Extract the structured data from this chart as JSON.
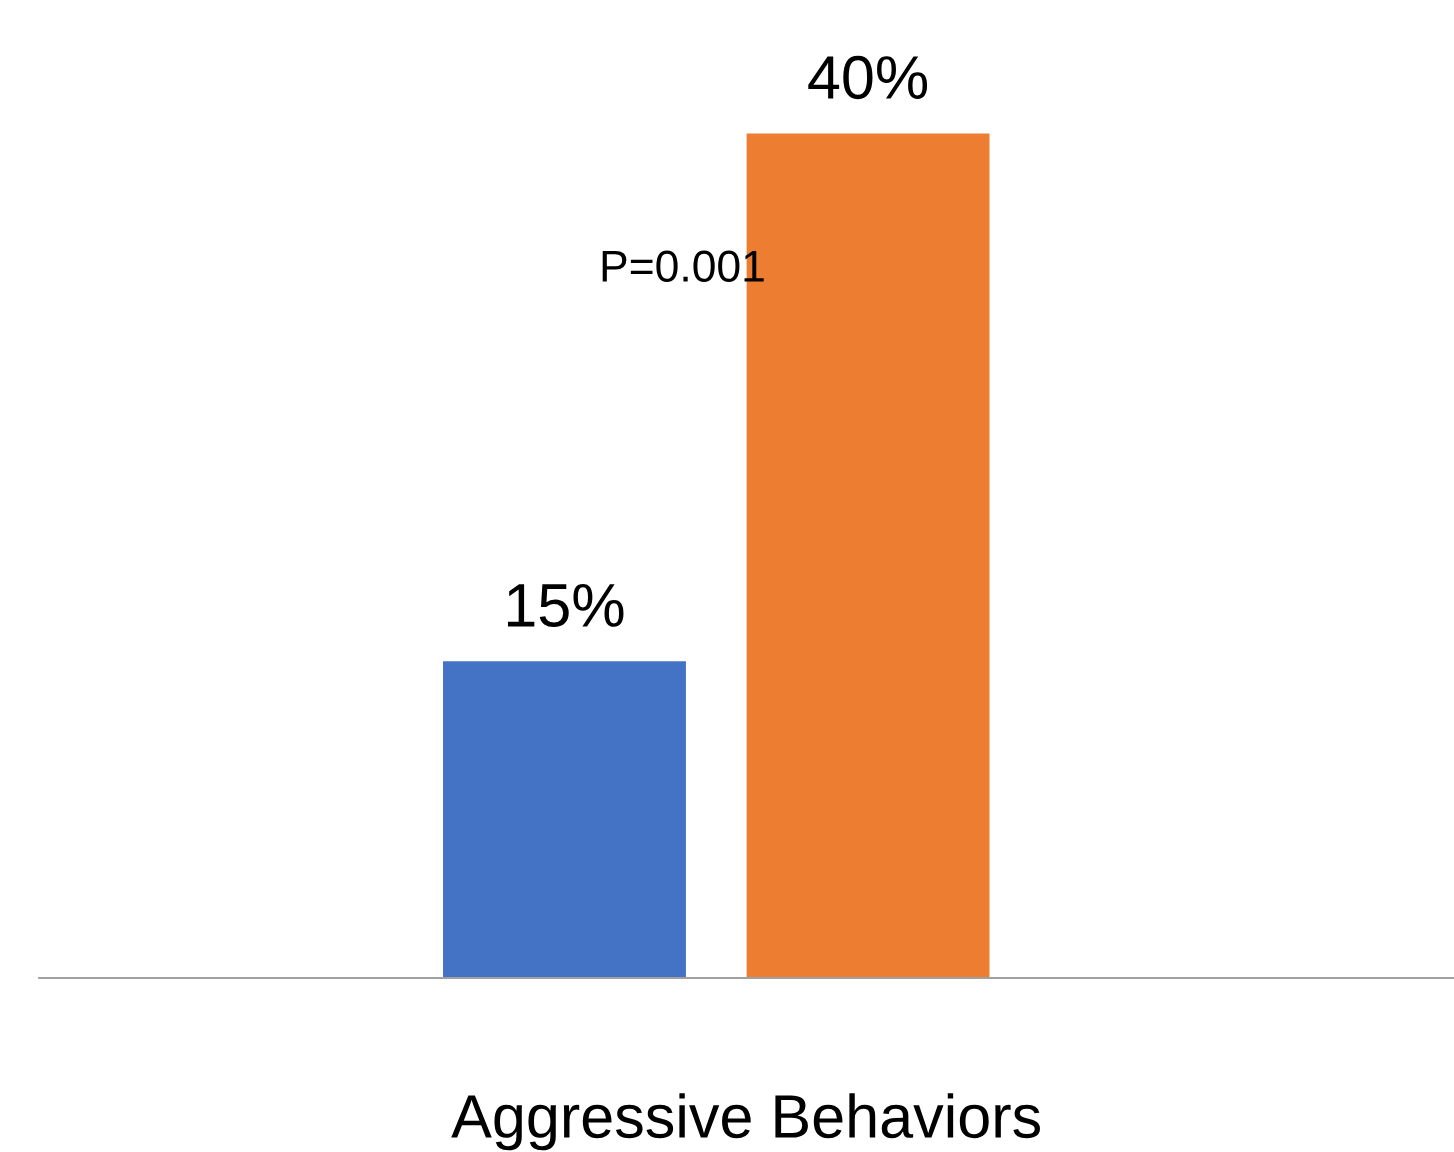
{
  "chart_data": {
    "type": "bar",
    "categories": [
      null,
      null
    ],
    "xlabel": "Aggressive Behaviors",
    "values": [
      15,
      40
    ],
    "colors": [
      "#4472c4",
      "#ed7d31"
    ],
    "value_labels": [
      "15%",
      "40%"
    ],
    "annotations": [
      "P=0.001"
    ],
    "grid": false,
    "legend": false
  }
}
